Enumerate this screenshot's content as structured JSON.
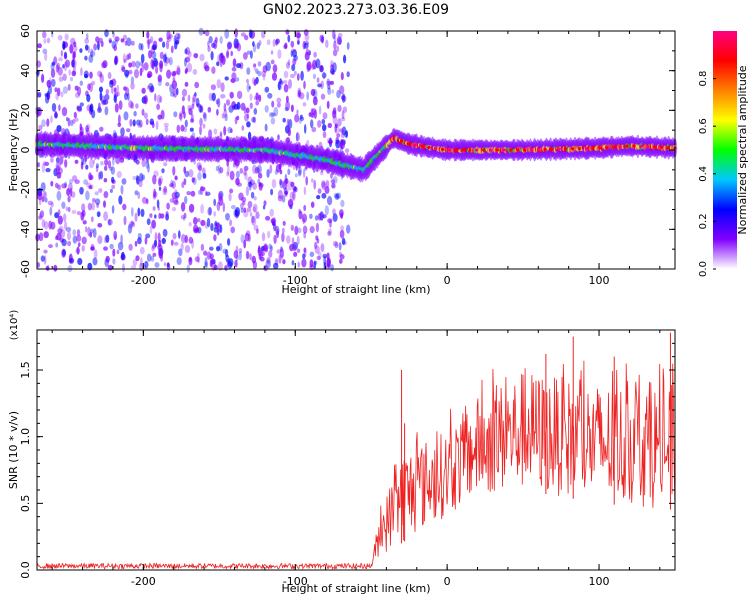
{
  "title": "GN02.2023.273.03.36.E09",
  "chart_data": [
    {
      "type": "heatmap",
      "xlabel": "Height of straight line (km)",
      "ylabel": "Frequency (Hz)",
      "xlim": [
        -270,
        150
      ],
      "ylim": [
        -60,
        60
      ],
      "x_ticks": [
        -200,
        -100,
        0,
        100
      ],
      "x_tick_labels": [
        "-200",
        "-100",
        "0",
        "100"
      ],
      "y_ticks": [
        -60,
        -40,
        -20,
        0,
        20,
        40,
        60
      ],
      "y_tick_labels": [
        "-60",
        "-40",
        "-20",
        "0",
        "20",
        "40",
        "60"
      ],
      "colorbar": {
        "label": "Normalized spectral amplitude",
        "range": [
          0,
          1
        ],
        "ticks": [
          0.0,
          0.2,
          0.4,
          0.6,
          0.8
        ],
        "tick_labels": [
          "0.0",
          "0.2",
          "0.4",
          "0.6",
          "0.8"
        ],
        "colors": [
          "#ffffff",
          "#8000ff",
          "#0000ff",
          "#00c8ff",
          "#00ff00",
          "#ffff00",
          "#ff8000",
          "#ff0000",
          "#ff0080"
        ]
      },
      "ridge": {
        "x": [
          -270,
          -200,
          -120,
          -95,
          -80,
          -65,
          -55,
          -45,
          -35,
          -25,
          -10,
          0,
          50,
          100,
          120,
          150
        ],
        "y": [
          3,
          1,
          0,
          -3,
          -5,
          -8,
          -10,
          -2,
          6,
          3,
          1,
          0,
          0,
          1,
          2,
          1
        ]
      },
      "noise_region": {
        "x": [
          -270,
          -65
        ],
        "y": [
          -60,
          60
        ]
      }
    },
    {
      "type": "line",
      "xlabel": "Height of straight line (km)",
      "ylabel": "SNR (10 * v/v)",
      "scale_label": "(x10⁴)",
      "xlim": [
        -270,
        150
      ],
      "ylim": [
        0,
        1.8
      ],
      "x_ticks": [
        -200,
        -100,
        0,
        100
      ],
      "x_tick_labels": [
        "-200",
        "-100",
        "0",
        "100"
      ],
      "y_ticks": [
        0.0,
        0.5,
        1.0,
        1.5
      ],
      "y_tick_labels": [
        "0.0",
        "0.5",
        "1.0",
        "1.5"
      ],
      "color": "#ee2222",
      "envelope": {
        "x": [
          -270,
          -50,
          -45,
          -30,
          -10,
          0,
          20,
          50,
          100,
          150
        ],
        "low": [
          0.01,
          0.01,
          0.1,
          0.2,
          0.35,
          0.4,
          0.55,
          0.6,
          0.5,
          0.45
        ],
        "high": [
          0.05,
          0.05,
          0.4,
          0.9,
          1.0,
          1.05,
          1.3,
          1.5,
          1.4,
          1.4
        ]
      },
      "peaks": {
        "x": [
          -30,
          -28,
          65,
          83,
          110,
          147
        ],
        "y": [
          1.5,
          1.1,
          1.62,
          1.75,
          1.6,
          1.78
        ]
      }
    }
  ]
}
